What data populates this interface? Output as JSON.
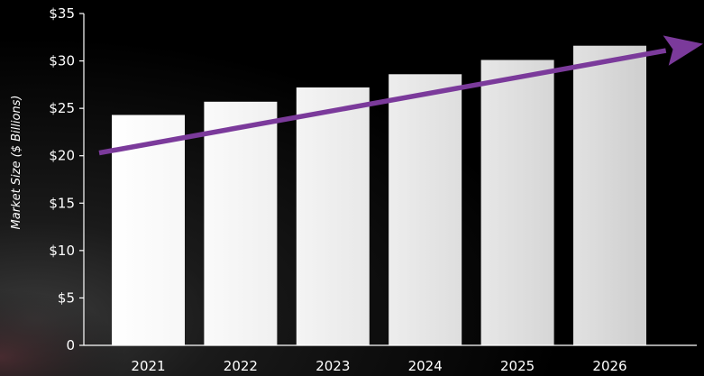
{
  "chart_data": {
    "type": "bar",
    "title": "",
    "xlabel": "",
    "ylabel": "Market Size ($ Billions)",
    "categories": [
      "2021",
      "2022",
      "2023",
      "2024",
      "2025",
      "2026"
    ],
    "values": [
      24.3,
      25.7,
      27.2,
      28.6,
      30.1,
      31.6
    ],
    "ylim": [
      0,
      35
    ],
    "yticks": [
      0,
      5,
      10,
      15,
      20,
      25,
      30,
      35
    ],
    "ytick_labels": [
      "0",
      "$5",
      "$10",
      "$15",
      "$20",
      "$25",
      "$30",
      "$35"
    ],
    "trend_arrow": {
      "from": 20.3,
      "to": 31.8
    },
    "grid": false,
    "legend": "none",
    "colors": {
      "background": "#000000",
      "bar_light": "#ffffff",
      "bar_shade": "#d4d4d4",
      "axis": "#ffffff",
      "trend_arrow": "#7b3a9b"
    }
  }
}
